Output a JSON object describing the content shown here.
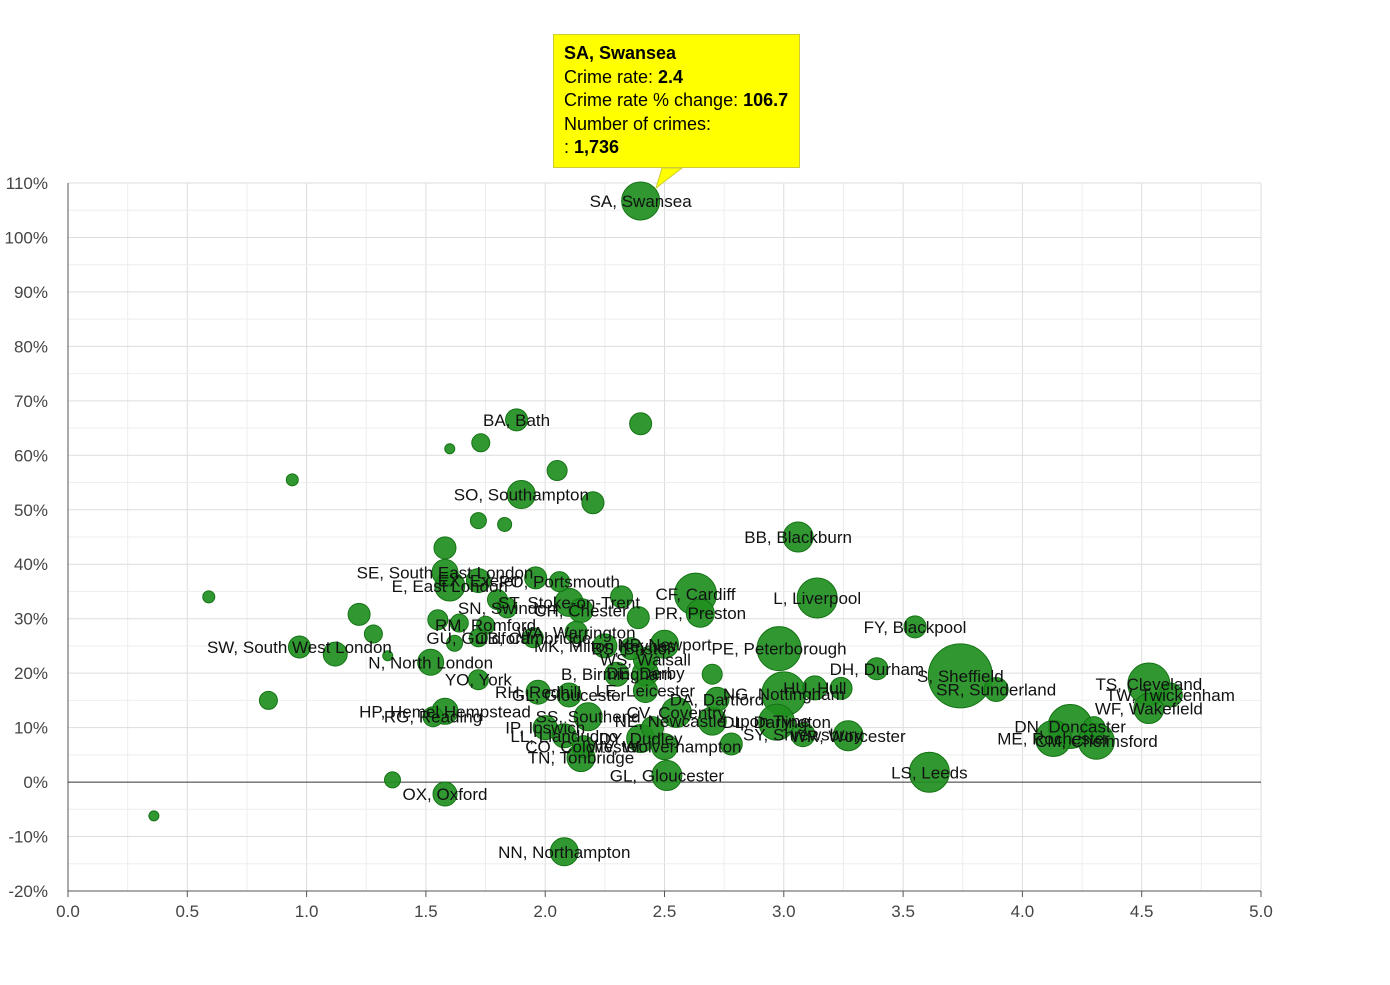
{
  "colors": {
    "bubble": "#1f8f1f",
    "bubble_stroke": "#147314",
    "tooltip_bg": "#ffff00",
    "grid": "#dddddd",
    "minor_grid": "#eeeeee",
    "zero_line": "#333333"
  },
  "tooltip": {
    "title": "SA, Swansea",
    "crime_rate_label": "Crime rate: ",
    "crime_rate_value": "2.4",
    "change_label": "Crime rate % change: ",
    "change_value": "106.7",
    "count_label": "Number of crimes:",
    "count_prefix": ": ",
    "count_value": "1,736"
  },
  "chart_data": {
    "type": "scatter",
    "subtype": "bubble",
    "xlim": [
      0,
      5
    ],
    "ylim": [
      -20,
      110
    ],
    "x_ticks": [
      0,
      0.5,
      1,
      1.5,
      2,
      2.5,
      3,
      3.5,
      4,
      4.5,
      5
    ],
    "x_tick_labels": [
      "0.0",
      "0.5",
      "1.0",
      "1.5",
      "2.0",
      "2.5",
      "3.0",
      "3.5",
      "4.0",
      "4.5",
      "5.0"
    ],
    "y_ticks": [
      -20,
      -10,
      0,
      10,
      20,
      30,
      40,
      50,
      60,
      70,
      80,
      90,
      100,
      110
    ],
    "y_tick_labels": [
      "-20%",
      "-10%",
      "0%",
      "10%",
      "20%",
      "30%",
      "40%",
      "50%",
      "60%",
      "70%",
      "80%",
      "90%",
      "100%",
      "110%"
    ],
    "grid": true,
    "points": [
      {
        "x": 2.4,
        "y": 106.7,
        "size": 19,
        "label": "SA, Swansea"
      },
      {
        "x": 1.88,
        "y": 66.5,
        "size": 11,
        "label": "BA, Bath"
      },
      {
        "x": 2.4,
        "y": 65.8,
        "size": 11,
        "label": ""
      },
      {
        "x": 1.73,
        "y": 62.3,
        "size": 9,
        "label": ""
      },
      {
        "x": 1.6,
        "y": 61.2,
        "size": 5,
        "label": ""
      },
      {
        "x": 0.94,
        "y": 55.5,
        "size": 6,
        "label": ""
      },
      {
        "x": 2.05,
        "y": 57.2,
        "size": 10,
        "label": ""
      },
      {
        "x": 1.9,
        "y": 52.8,
        "size": 14,
        "label": "SO, Southampton"
      },
      {
        "x": 2.2,
        "y": 51.3,
        "size": 11,
        "label": ""
      },
      {
        "x": 1.72,
        "y": 48,
        "size": 8,
        "label": ""
      },
      {
        "x": 1.83,
        "y": 47.3,
        "size": 7,
        "label": ""
      },
      {
        "x": 3.06,
        "y": 45,
        "size": 15,
        "label": "BB, Blackburn"
      },
      {
        "x": 1.58,
        "y": 43,
        "size": 11,
        "label": ""
      },
      {
        "x": 1.58,
        "y": 38.5,
        "size": 13,
        "label": "SE, South East London"
      },
      {
        "x": 1.96,
        "y": 37.5,
        "size": 11,
        "label": ""
      },
      {
        "x": 1.6,
        "y": 36,
        "size": 15,
        "label": "E, East London"
      },
      {
        "x": 1.72,
        "y": 37,
        "size": 12,
        "label": "EX, Exeter"
      },
      {
        "x": 2.06,
        "y": 36.8,
        "size": 10,
        "label": "PO, Portsmouth"
      },
      {
        "x": 0.59,
        "y": 34,
        "size": 6,
        "label": ""
      },
      {
        "x": 1.8,
        "y": 33.5,
        "size": 10,
        "label": ""
      },
      {
        "x": 2.32,
        "y": 34,
        "size": 11,
        "label": ""
      },
      {
        "x": 2.63,
        "y": 34.5,
        "size": 21,
        "label": "CF, Cardiff"
      },
      {
        "x": 3.14,
        "y": 33.8,
        "size": 20,
        "label": "L, Liverpool"
      },
      {
        "x": 1.84,
        "y": 32,
        "size": 10,
        "label": "SN, Swindon"
      },
      {
        "x": 2.1,
        "y": 33,
        "size": 14,
        "label": "ST, Stoke-on-Trent"
      },
      {
        "x": 1.22,
        "y": 30.8,
        "size": 11,
        "label": ""
      },
      {
        "x": 2.65,
        "y": 31,
        "size": 14,
        "label": "PR, Preston"
      },
      {
        "x": 2.39,
        "y": 30.2,
        "size": 11,
        "label": ""
      },
      {
        "x": 2.15,
        "y": 31.5,
        "size": 12,
        "label": "CH, Chester"
      },
      {
        "x": 1.55,
        "y": 29.8,
        "size": 10,
        "label": ""
      },
      {
        "x": 1.64,
        "y": 29.2,
        "size": 9,
        "label": ""
      },
      {
        "x": 1.75,
        "y": 28.8,
        "size": 9,
        "label": "RM, Romford"
      },
      {
        "x": 3.55,
        "y": 28.5,
        "size": 11,
        "label": "FY, Blackpool"
      },
      {
        "x": 1.28,
        "y": 27.2,
        "size": 9,
        "label": ""
      },
      {
        "x": 2.13,
        "y": 27.5,
        "size": 11,
        "label": "WA, Warrington"
      },
      {
        "x": 1.72,
        "y": 26.5,
        "size": 9,
        "label": "GU, Guildford"
      },
      {
        "x": 1.95,
        "y": 26.5,
        "size": 10,
        "label": "CB, Cambridge"
      },
      {
        "x": 1.62,
        "y": 25.5,
        "size": 8,
        "label": ""
      },
      {
        "x": 0.97,
        "y": 24.8,
        "size": 11,
        "label": "SW, South West London"
      },
      {
        "x": 2.98,
        "y": 24.5,
        "size": 22,
        "label": "PE, Peterborough"
      },
      {
        "x": 2.25,
        "y": 25,
        "size": 12,
        "label": "MK, Milton Keynes"
      },
      {
        "x": 2.5,
        "y": 25.3,
        "size": 14,
        "label": "NP, Newport"
      },
      {
        "x": 2.36,
        "y": 24.5,
        "size": 11,
        "label": "BS, Bristol"
      },
      {
        "x": 1.12,
        "y": 23.5,
        "size": 12,
        "label": ""
      },
      {
        "x": 1.34,
        "y": 23.2,
        "size": 5,
        "label": ""
      },
      {
        "x": 1.52,
        "y": 22,
        "size": 13,
        "label": "N, North London"
      },
      {
        "x": 2.42,
        "y": 22.5,
        "size": 12,
        "label": "WS, Walsall"
      },
      {
        "x": 2.7,
        "y": 19.8,
        "size": 10,
        "label": ""
      },
      {
        "x": 3.39,
        "y": 20.8,
        "size": 11,
        "label": "DH, Durham"
      },
      {
        "x": 3.74,
        "y": 19.5,
        "size": 32,
        "label": "S, Sheffield"
      },
      {
        "x": 2.3,
        "y": 19.8,
        "size": 12,
        "label": "B, Birmingham"
      },
      {
        "x": 2.42,
        "y": 20,
        "size": 13,
        "label": "DE, Derby"
      },
      {
        "x": 1.72,
        "y": 18.8,
        "size": 10,
        "label": "YO, York"
      },
      {
        "x": 4.53,
        "y": 18,
        "size": 21,
        "label": "TS, Cleveland"
      },
      {
        "x": 3.24,
        "y": 17.2,
        "size": 11,
        "label": ""
      },
      {
        "x": 3.13,
        "y": 17.3,
        "size": 12,
        "label": "HU, Hull"
      },
      {
        "x": 3.0,
        "y": 16.2,
        "size": 22,
        "label": "NG, Nottingham"
      },
      {
        "x": 3.89,
        "y": 17,
        "size": 12,
        "label": "SR, Sunderland"
      },
      {
        "x": 1.97,
        "y": 16.5,
        "size": 12,
        "label": "RH, Redhill"
      },
      {
        "x": 2.1,
        "y": 16,
        "size": 12,
        "label": "GL, Gloucester"
      },
      {
        "x": 2.42,
        "y": 16.8,
        "size": 12,
        "label": "LE, Leicester"
      },
      {
        "x": 4.62,
        "y": 16,
        "size": 12,
        "label": "TW, Twickenham"
      },
      {
        "x": 2.72,
        "y": 15.2,
        "size": 12,
        "label": "DA, Dartford"
      },
      {
        "x": 0.84,
        "y": 15,
        "size": 9,
        "label": ""
      },
      {
        "x": 4.53,
        "y": 13.5,
        "size": 15,
        "label": "WF, Wakefield"
      },
      {
        "x": 1.58,
        "y": 13,
        "size": 13,
        "label": "HP, Hemel Hempstead"
      },
      {
        "x": 1.53,
        "y": 12,
        "size": 10,
        "label": "RG, Reading"
      },
      {
        "x": 2.55,
        "y": 12.8,
        "size": 15,
        "label": "CV, Coventry"
      },
      {
        "x": 2.18,
        "y": 12,
        "size": 14,
        "label": "SS, Southend"
      },
      {
        "x": 2.97,
        "y": 11,
        "size": 18,
        "label": "DL, Darlington"
      },
      {
        "x": 2.7,
        "y": 11.2,
        "size": 14,
        "label": "NE, Newcastle upon Tyne"
      },
      {
        "x": 4.2,
        "y": 10.2,
        "size": 22,
        "label": "DN, Doncaster"
      },
      {
        "x": 4.3,
        "y": 10,
        "size": 11,
        "label": ""
      },
      {
        "x": 2.0,
        "y": 10,
        "size": 12,
        "label": "IP, Ipswich"
      },
      {
        "x": 2.45,
        "y": 10,
        "size": 11,
        "label": ""
      },
      {
        "x": 3.27,
        "y": 8.5,
        "size": 15,
        "label": "WR, Worcester"
      },
      {
        "x": 3.08,
        "y": 8.7,
        "size": 12,
        "label": "SY, Shrewsbury"
      },
      {
        "x": 2.08,
        "y": 8.5,
        "size": 12,
        "label": "LL, Llandudno"
      },
      {
        "x": 2.4,
        "y": 8,
        "size": 14,
        "label": "DY, Dudley"
      },
      {
        "x": 4.13,
        "y": 8,
        "size": 18,
        "label": "ME, Rochester"
      },
      {
        "x": 4.31,
        "y": 7.5,
        "size": 18,
        "label": "CM, Chelmsford"
      },
      {
        "x": 2.5,
        "y": 6.5,
        "size": 13,
        "label": "WV, Wolverhampton"
      },
      {
        "x": 2.78,
        "y": 7,
        "size": 11,
        "label": ""
      },
      {
        "x": 2.16,
        "y": 6.5,
        "size": 11,
        "label": "CO, Colchester"
      },
      {
        "x": 2.15,
        "y": 4.5,
        "size": 14,
        "label": "TN, Tonbridge"
      },
      {
        "x": 3.61,
        "y": 1.8,
        "size": 20,
        "label": "LS, Leeds"
      },
      {
        "x": 2.51,
        "y": 1.2,
        "size": 15,
        "label": "GL, Gloucester"
      },
      {
        "x": 1.36,
        "y": 0.4,
        "size": 8,
        "label": ""
      },
      {
        "x": 1.58,
        "y": -2.2,
        "size": 12,
        "label": "OX, Oxford"
      },
      {
        "x": 0.36,
        "y": -6.2,
        "size": 5,
        "label": ""
      },
      {
        "x": 2.08,
        "y": -12.8,
        "size": 14,
        "label": "NN, Northampton"
      }
    ]
  }
}
